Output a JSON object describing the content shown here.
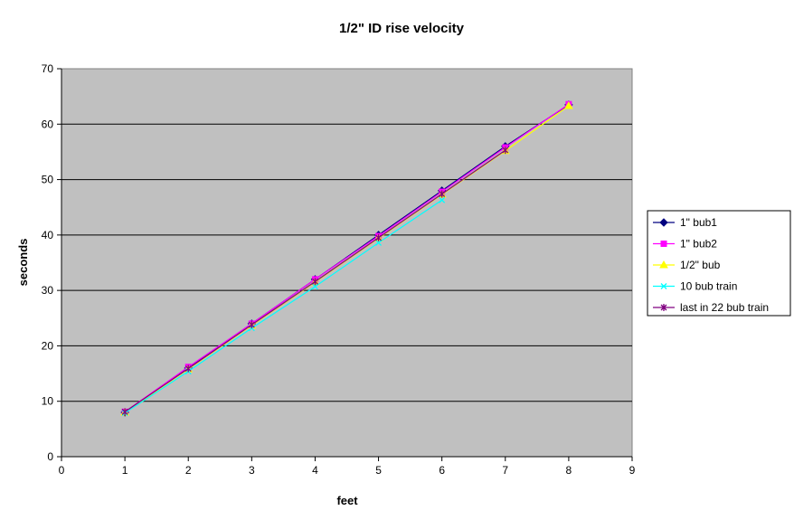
{
  "chart_data": {
    "type": "line",
    "title": "1/2\" ID rise velocity",
    "xlabel": "feet",
    "ylabel": "seconds",
    "xlim": [
      0,
      9
    ],
    "ylim": [
      0,
      70
    ],
    "xticks": [
      "0",
      "1",
      "2",
      "3",
      "4",
      "5",
      "6",
      "7",
      "8",
      "9"
    ],
    "yticks": [
      "0",
      "10",
      "20",
      "30",
      "40",
      "50",
      "60",
      "70"
    ],
    "grid": "horizontal major gridlines",
    "plot_background": "#c0c0c0",
    "legend_position": "right",
    "series": [
      {
        "name": "1\" bub1",
        "color": "#000080",
        "marker": "diamond",
        "x": [
          1,
          2,
          3,
          4,
          5,
          6,
          7,
          8
        ],
        "y": [
          8.0,
          16.0,
          24.0,
          32.0,
          40.0,
          48.0,
          56.0,
          63.5
        ]
      },
      {
        "name": "1\" bub2",
        "color": "#ff00ff",
        "marker": "square",
        "x": [
          1,
          2,
          3,
          4,
          5,
          6,
          7,
          8
        ],
        "y": [
          8.1,
          16.2,
          24.0,
          32.0,
          39.8,
          47.8,
          55.8,
          63.6
        ]
      },
      {
        "name": "1/2\" bub",
        "color": "#ffff00",
        "marker": "triangle",
        "x": [
          1,
          2,
          3,
          4,
          5,
          6,
          7,
          8
        ],
        "y": [
          8.0,
          15.8,
          23.7,
          31.5,
          39.4,
          47.3,
          55.2,
          63.3
        ]
      },
      {
        "name": "10 bub train",
        "color": "#00ffff",
        "marker": "x",
        "x": [
          1,
          2,
          3,
          4,
          5,
          6
        ],
        "y": [
          7.9,
          15.4,
          23.2,
          30.7,
          38.6,
          46.3
        ]
      },
      {
        "name": "last in 22 bub train",
        "color": "#800080",
        "marker": "star",
        "x": [
          1,
          2,
          3,
          4,
          5,
          6,
          7
        ],
        "y": [
          8.1,
          15.9,
          23.8,
          31.6,
          39.5,
          47.4,
          55.3
        ]
      }
    ]
  }
}
